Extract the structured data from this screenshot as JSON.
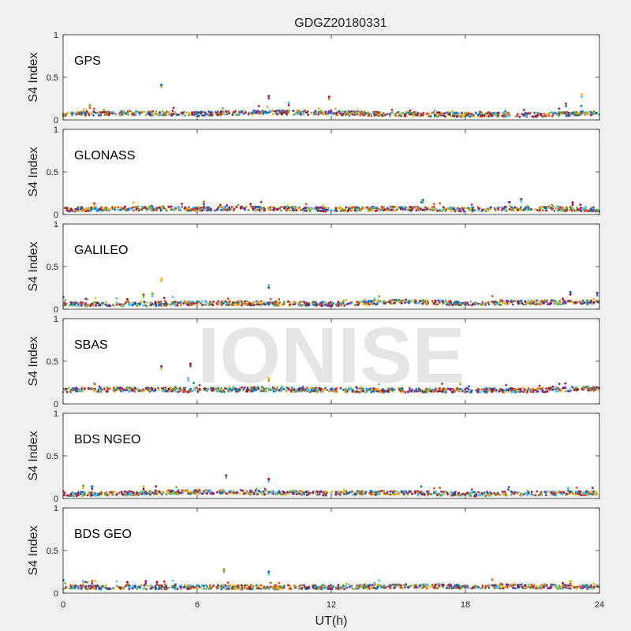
{
  "figure": {
    "title": "GDGZ20180331",
    "xlabel": "UT(h)",
    "watermark": "IONISE"
  },
  "chart_data": {
    "type": "scatter",
    "title": "GDGZ20180331",
    "xlabel": "UT(h)",
    "ylabel": "S4 Index",
    "xlim": [
      0,
      24
    ],
    "ylim": [
      0,
      1
    ],
    "x_ticks": [
      "0",
      "6",
      "12",
      "18",
      "24"
    ],
    "y_ticks": [
      "0",
      "0.5",
      "1"
    ],
    "grid": false,
    "series_colors": [
      "#0072BD",
      "#D95319",
      "#EDB120",
      "#7E2F8E",
      "#77AC30",
      "#4DBEEE",
      "#A2142F"
    ],
    "panels": [
      {
        "label": "GPS",
        "baseline": [
          {
            "x": 0,
            "y": 0.07
          },
          {
            "x": 3,
            "y": 0.08
          },
          {
            "x": 6,
            "y": 0.07
          },
          {
            "x": 9,
            "y": 0.09
          },
          {
            "x": 12,
            "y": 0.08
          },
          {
            "x": 15,
            "y": 0.07
          },
          {
            "x": 18,
            "y": 0.06
          },
          {
            "x": 21,
            "y": 0.06
          },
          {
            "x": 24,
            "y": 0.08
          }
        ],
        "outliers": [
          {
            "x": 4.4,
            "y": 0.41
          },
          {
            "x": 9.2,
            "y": 0.28
          },
          {
            "x": 11.9,
            "y": 0.27
          },
          {
            "x": 23.2,
            "y": 0.3
          },
          {
            "x": 10.1,
            "y": 0.2
          },
          {
            "x": 22.5,
            "y": 0.19
          },
          {
            "x": 1.2,
            "y": 0.17
          }
        ]
      },
      {
        "label": "GLONASS",
        "baseline": [
          {
            "x": 0,
            "y": 0.06
          },
          {
            "x": 3,
            "y": 0.07
          },
          {
            "x": 6,
            "y": 0.07
          },
          {
            "x": 9,
            "y": 0.07
          },
          {
            "x": 12,
            "y": 0.06
          },
          {
            "x": 15,
            "y": 0.07
          },
          {
            "x": 18,
            "y": 0.06
          },
          {
            "x": 21,
            "y": 0.07
          },
          {
            "x": 24,
            "y": 0.06
          }
        ],
        "outliers": [
          {
            "x": 1.4,
            "y": 0.13
          },
          {
            "x": 6.3,
            "y": 0.15
          },
          {
            "x": 16.1,
            "y": 0.17
          },
          {
            "x": 20.5,
            "y": 0.18
          },
          {
            "x": 22.8,
            "y": 0.14
          }
        ]
      },
      {
        "label": "GALILEO",
        "baseline": [
          {
            "x": 0,
            "y": 0.06
          },
          {
            "x": 3,
            "y": 0.06
          },
          {
            "x": 6,
            "y": 0.07
          },
          {
            "x": 9,
            "y": 0.07
          },
          {
            "x": 12,
            "y": 0.06
          },
          {
            "x": 15,
            "y": 0.09
          },
          {
            "x": 18,
            "y": 0.07
          },
          {
            "x": 21,
            "y": 0.08
          },
          {
            "x": 24,
            "y": 0.08
          }
        ],
        "outliers": [
          {
            "x": 4.4,
            "y": 0.36
          },
          {
            "x": 9.2,
            "y": 0.28
          },
          {
            "x": 3.6,
            "y": 0.17
          },
          {
            "x": 4.0,
            "y": 0.18
          },
          {
            "x": 22.7,
            "y": 0.2
          },
          {
            "x": 23.9,
            "y": 0.19
          }
        ]
      },
      {
        "label": "SBAS",
        "baseline": [
          {
            "x": 0,
            "y": 0.16
          },
          {
            "x": 3,
            "y": 0.17
          },
          {
            "x": 6,
            "y": 0.16
          },
          {
            "x": 9,
            "y": 0.17
          },
          {
            "x": 12,
            "y": 0.16
          },
          {
            "x": 15,
            "y": 0.16
          },
          {
            "x": 18,
            "y": 0.16
          },
          {
            "x": 21,
            "y": 0.16
          },
          {
            "x": 24,
            "y": 0.18
          }
        ],
        "outliers": [
          {
            "x": 4.4,
            "y": 0.44
          },
          {
            "x": 5.7,
            "y": 0.47
          },
          {
            "x": 9.2,
            "y": 0.3
          },
          {
            "x": 5.6,
            "y": 0.3
          }
        ]
      },
      {
        "label": "BDS NGEO",
        "baseline": [
          {
            "x": 0,
            "y": 0.05
          },
          {
            "x": 3,
            "y": 0.06
          },
          {
            "x": 6,
            "y": 0.08
          },
          {
            "x": 9,
            "y": 0.07
          },
          {
            "x": 12,
            "y": 0.06
          },
          {
            "x": 15,
            "y": 0.07
          },
          {
            "x": 18,
            "y": 0.05
          },
          {
            "x": 21,
            "y": 0.06
          },
          {
            "x": 24,
            "y": 0.06
          }
        ],
        "outliers": [
          {
            "x": 0.9,
            "y": 0.15
          },
          {
            "x": 1.3,
            "y": 0.14
          },
          {
            "x": 7.3,
            "y": 0.27
          },
          {
            "x": 9.2,
            "y": 0.23
          },
          {
            "x": 3.6,
            "y": 0.14
          },
          {
            "x": 22.6,
            "y": 0.12
          }
        ]
      },
      {
        "label": "BDS GEO",
        "baseline": [
          {
            "x": 0,
            "y": 0.07
          },
          {
            "x": 3,
            "y": 0.07
          },
          {
            "x": 6,
            "y": 0.07
          },
          {
            "x": 9,
            "y": 0.07
          },
          {
            "x": 12,
            "y": 0.07
          },
          {
            "x": 15,
            "y": 0.08
          },
          {
            "x": 18,
            "y": 0.08
          },
          {
            "x": 21,
            "y": 0.08
          },
          {
            "x": 24,
            "y": 0.07
          }
        ],
        "outliers": [
          {
            "x": 0.9,
            "y": 0.14
          },
          {
            "x": 1.3,
            "y": 0.14
          },
          {
            "x": 7.2,
            "y": 0.28
          },
          {
            "x": 9.2,
            "y": 0.25
          },
          {
            "x": 3.7,
            "y": 0.14
          },
          {
            "x": 4.2,
            "y": 0.13
          },
          {
            "x": 22.7,
            "y": 0.14
          }
        ]
      }
    ]
  }
}
